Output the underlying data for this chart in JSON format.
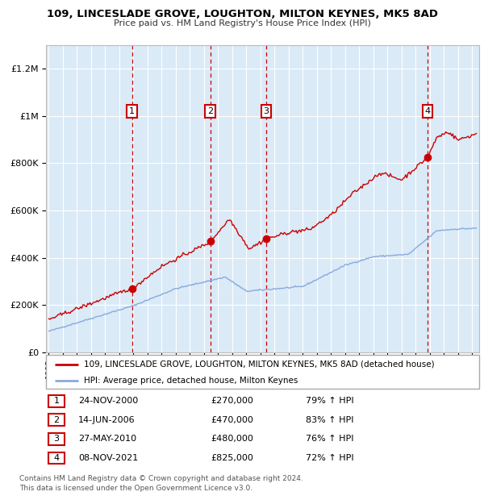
{
  "title1": "109, LINCESLADE GROVE, LOUGHTON, MILTON KEYNES, MK5 8AD",
  "title2": "Price paid vs. HM Land Registry's House Price Index (HPI)",
  "bg_color": "#daeaf7",
  "grid_color": "#ffffff",
  "sale_line_color": "#cc0000",
  "hpi_line_color": "#88aadd",
  "dashed_line_color": "#cc0000",
  "transactions": [
    {
      "num": 1,
      "date": "24-NOV-2000",
      "price": 270000,
      "pct": "79%",
      "year": 2000.9
    },
    {
      "num": 2,
      "date": "14-JUN-2006",
      "price": 470000,
      "pct": "83%",
      "year": 2006.45
    },
    {
      "num": 3,
      "date": "27-MAY-2010",
      "price": 480000,
      "pct": "76%",
      "year": 2010.4
    },
    {
      "num": 4,
      "date": "08-NOV-2021",
      "price": 825000,
      "pct": "72%",
      "year": 2021.85
    }
  ],
  "ylim": [
    0,
    1300000
  ],
  "xlim_start": 1994.8,
  "xlim_end": 2025.5,
  "footer1": "Contains HM Land Registry data © Crown copyright and database right 2024.",
  "footer2": "This data is licensed under the Open Government Licence v3.0.",
  "legend1": "109, LINCESLADE GROVE, LOUGHTON, MILTON KEYNES, MK5 8AD (detached house)",
  "legend2": "HPI: Average price, detached house, Milton Keynes"
}
